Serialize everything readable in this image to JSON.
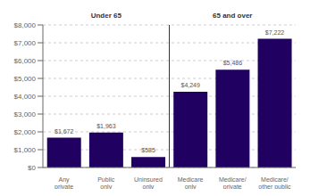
{
  "chart_data": {
    "type": "bar",
    "categories": [
      "Any\nprivate",
      "Public\nonly",
      "Uninsured\nonly",
      "Medicare\nonly",
      "Medicare/\nprivate",
      "Medicare/\nother public"
    ],
    "values": [
      1672,
      1963,
      585,
      4249,
      5486,
      7222
    ],
    "value_labels": [
      "$1,672",
      "$1,963",
      "$585",
      "$4,249",
      "$5,486",
      "$7,222"
    ],
    "data_labels": true,
    "color": "#200060",
    "annotations": [
      "Under 65",
      "65 and over"
    ],
    "ylim": [
      0,
      8000
    ],
    "yticks": [
      {
        "value": 0,
        "label": "$0"
      },
      {
        "value": 1000,
        "label": "$1,000"
      },
      {
        "value": 2000,
        "label": "$2,000"
      },
      {
        "value": 3000,
        "label": "$3,000"
      },
      {
        "value": 4000,
        "label": "$4,000"
      },
      {
        "value": 5000,
        "label": "$5,000"
      },
      {
        "value": 6000,
        "label": "$6,000"
      },
      {
        "value": 7000,
        "label": "$7,000"
      },
      {
        "value": 8000,
        "label": "$8,000"
      }
    ],
    "grid": true
  }
}
